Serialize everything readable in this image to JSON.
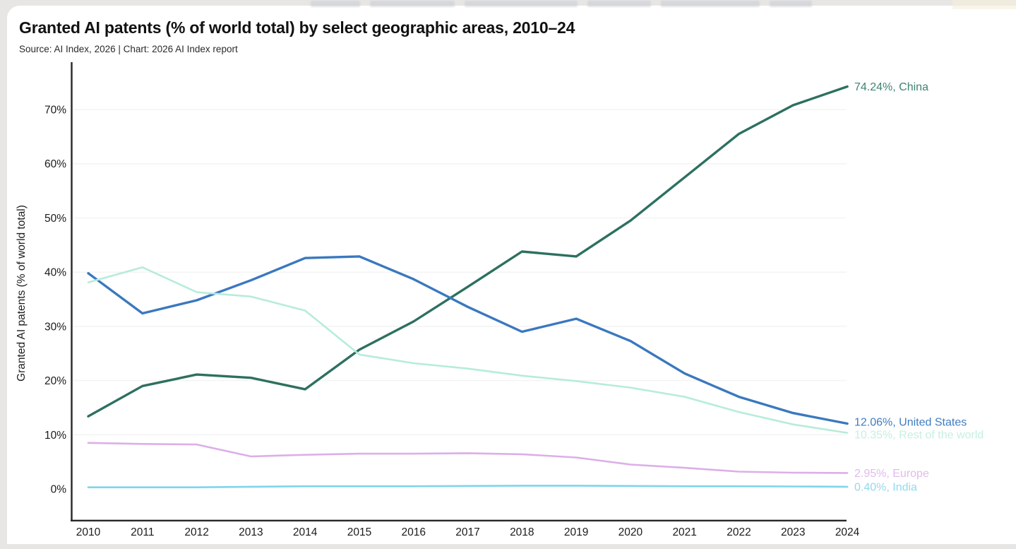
{
  "chart": {
    "title": "Granted AI patents (% of world total) by select geographic areas, 2010–24",
    "source": "Source: AI Index, 2026 | Chart: 2026 AI Index report",
    "ylabel": "Granted AI patents (% of world total)"
  },
  "chart_data": {
    "type": "line",
    "title": "Granted AI patents (% of world total) by select geographic areas, 2010–24",
    "xlabel": "",
    "ylabel": "Granted AI patents (% of world total)",
    "categories": [
      "2010",
      "2011",
      "2012",
      "2013",
      "2014",
      "2015",
      "2016",
      "2017",
      "2018",
      "2019",
      "2020",
      "2021",
      "2022",
      "2023",
      "2024"
    ],
    "y_tick_values": [
      0,
      10,
      20,
      30,
      40,
      50,
      60,
      70
    ],
    "y_tick_labels": [
      "0%",
      "10%",
      "20%",
      "30%",
      "40%",
      "50%",
      "60%",
      "70%"
    ],
    "ylim": [
      -6,
      78.5
    ],
    "grid": "very faint horizontal gridlines at each 10%",
    "legend_position": "end-of-line labels at right edge",
    "axis_color": "#262626",
    "series": [
      {
        "name": "China",
        "color": "#2d7060",
        "label_color": "#3e8372",
        "end_label": "74.24%, China",
        "values": [
          13.4,
          19.0,
          21.1,
          20.5,
          18.4,
          25.7,
          30.9,
          37.3,
          43.8,
          42.9,
          49.5,
          57.5,
          65.5,
          70.8,
          74.24
        ]
      },
      {
        "name": "United States",
        "color": "#3a78bf",
        "label_color": "#3f7dc0",
        "end_label": "12.06%, United States",
        "values": [
          39.8,
          32.4,
          34.8,
          38.5,
          42.6,
          42.9,
          38.7,
          33.6,
          29.0,
          31.4,
          27.3,
          21.3,
          17.0,
          14.0,
          12.06
        ]
      },
      {
        "name": "Rest of the world",
        "color": "#b6ecdb",
        "label_color": "#c6efe2",
        "end_label": "10.35%, Rest of the world",
        "values": [
          38.1,
          40.9,
          36.3,
          35.5,
          32.9,
          24.8,
          23.2,
          22.2,
          20.9,
          19.9,
          18.7,
          17.0,
          14.2,
          11.9,
          10.35
        ]
      },
      {
        "name": "Europe",
        "color": "#dcafe8",
        "label_color": "#e2b9ed",
        "end_label": "2.95%, Europe",
        "values": [
          8.5,
          8.3,
          8.2,
          6.0,
          6.3,
          6.5,
          6.5,
          6.6,
          6.4,
          5.8,
          4.5,
          3.9,
          3.2,
          3.0,
          2.95
        ]
      },
      {
        "name": "India",
        "color": "#7fd5ec",
        "label_color": "#92d9ec",
        "end_label": "0.40%, India",
        "values": [
          0.3,
          0.3,
          0.3,
          0.4,
          0.5,
          0.5,
          0.5,
          0.55,
          0.6,
          0.6,
          0.55,
          0.5,
          0.5,
          0.45,
          0.4
        ]
      }
    ]
  }
}
